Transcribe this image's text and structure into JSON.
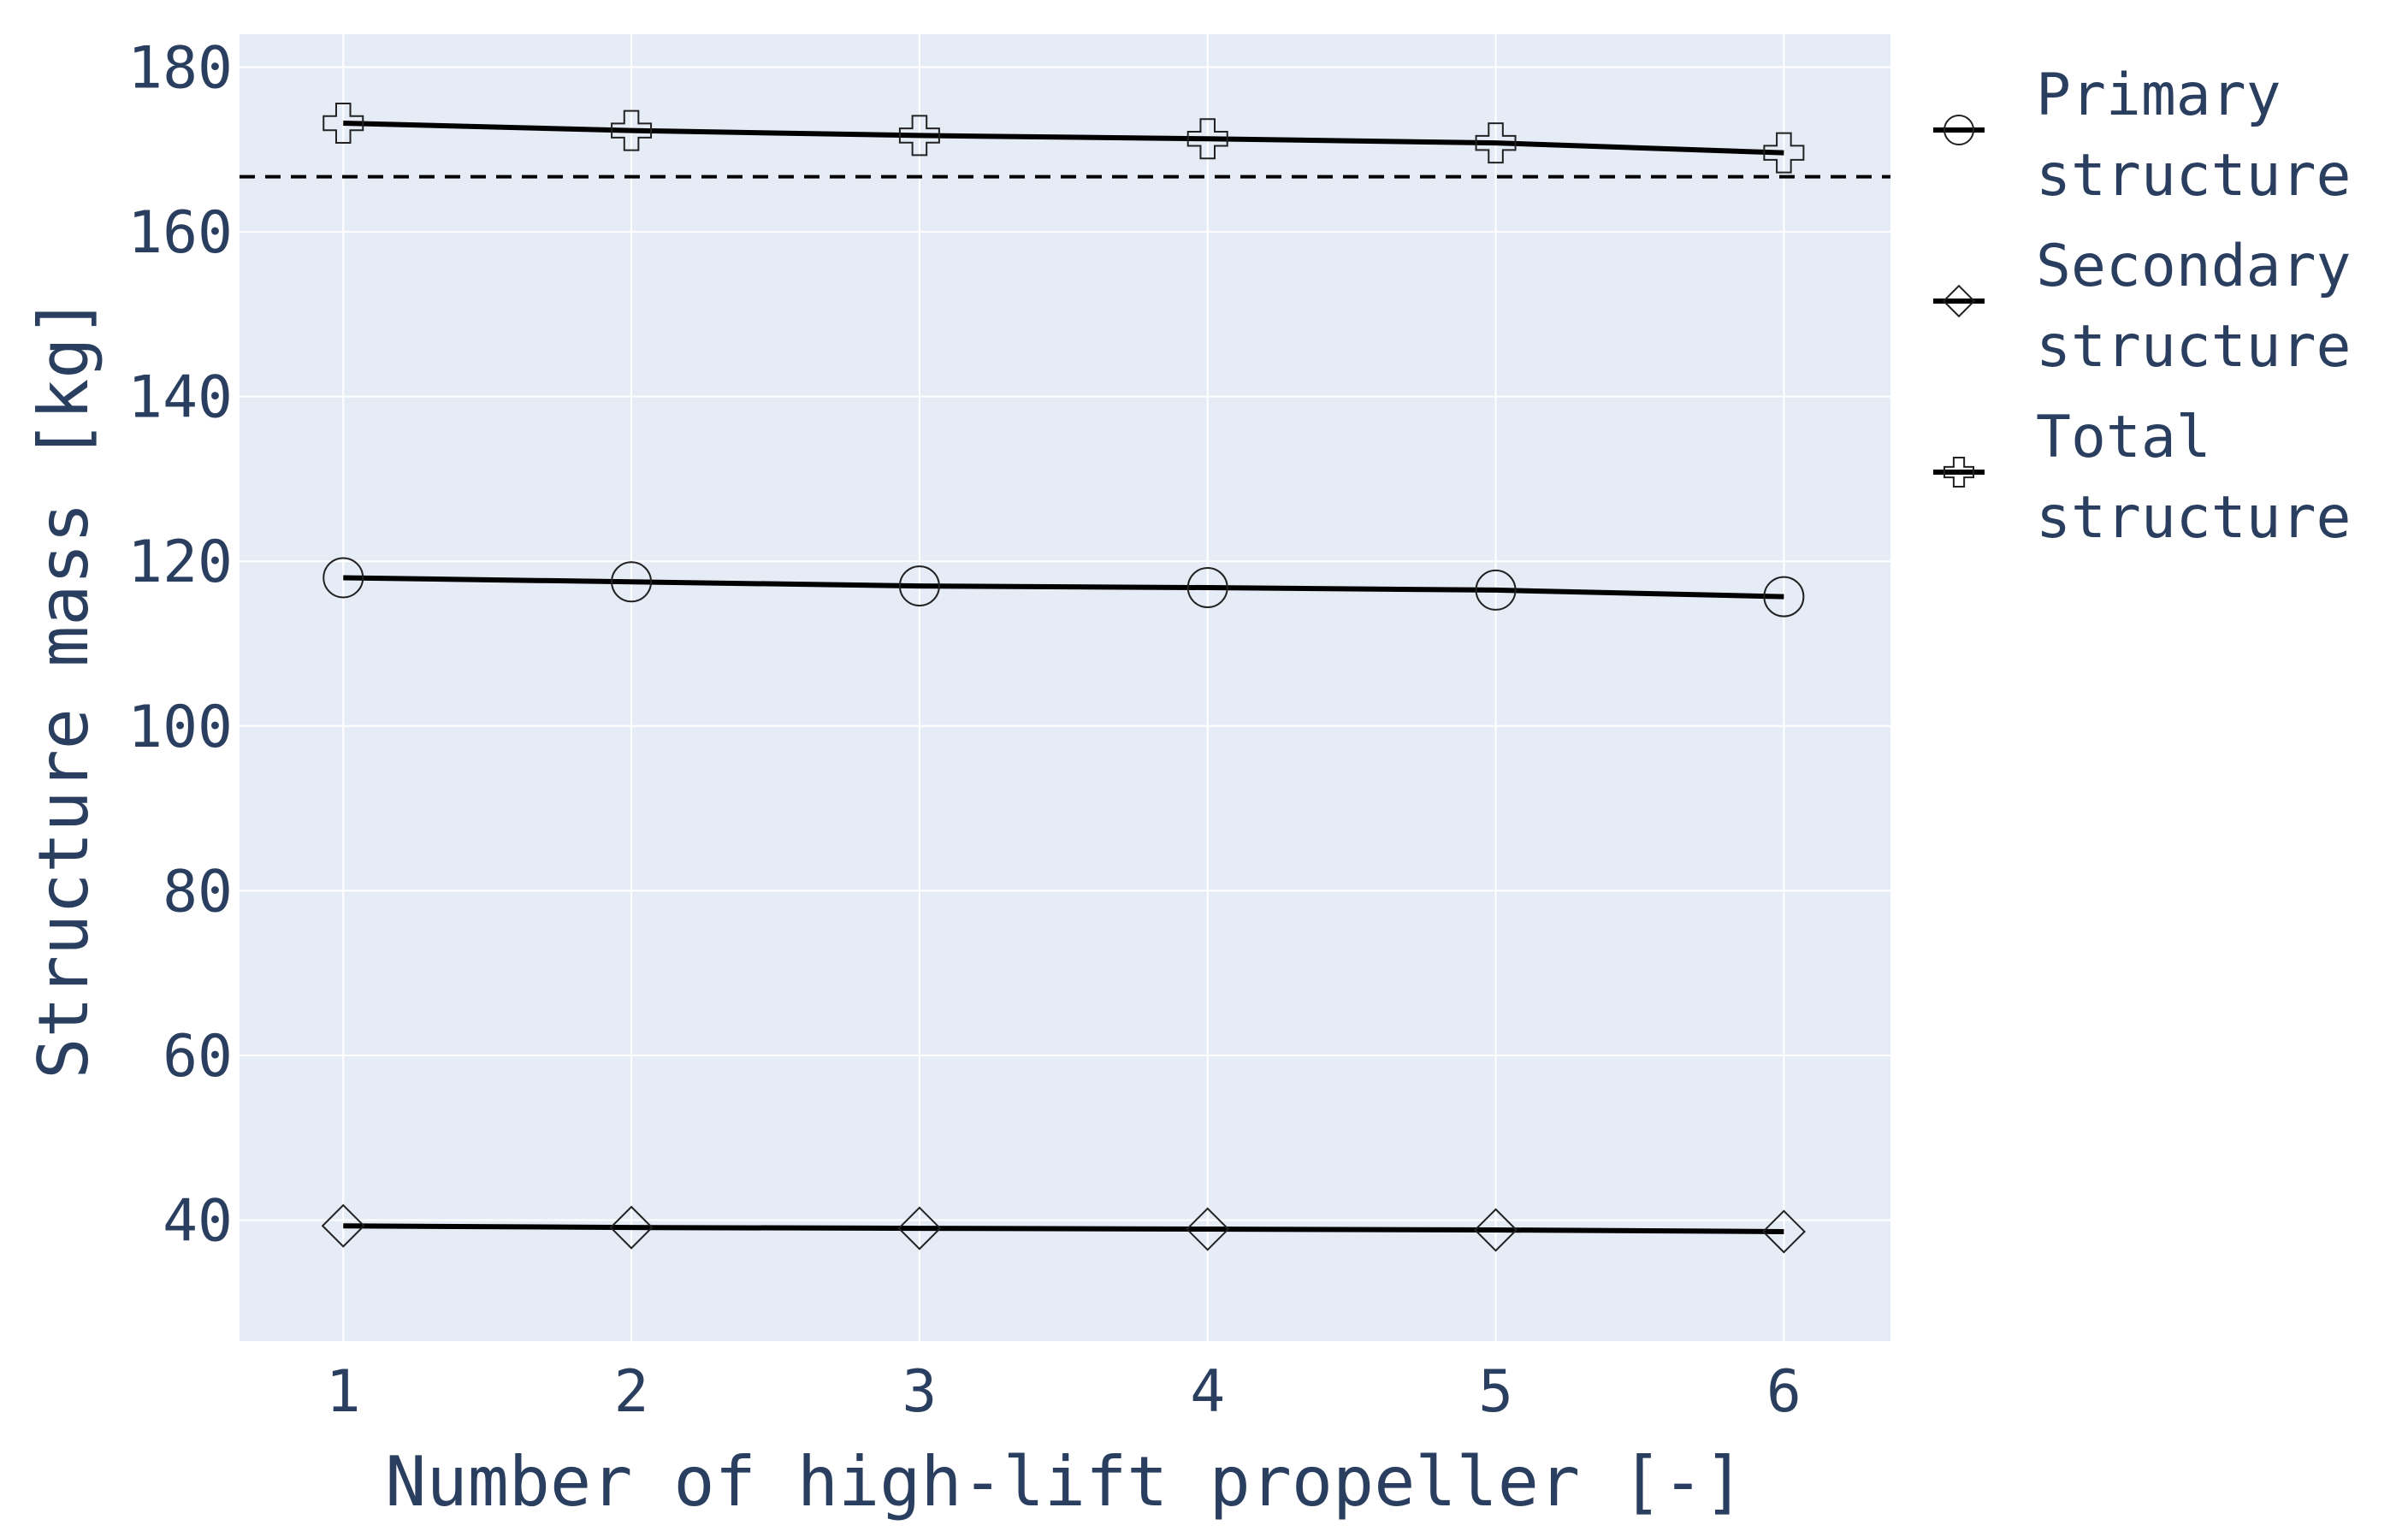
{
  "chart_data": {
    "type": "line",
    "xlabel": "Number of high-lift propeller [-]",
    "ylabel": "Structure mass [kg]",
    "x": [
      1,
      2,
      3,
      4,
      5,
      6
    ],
    "x_tick_labels": [
      "1",
      "2",
      "3",
      "4",
      "5",
      "6"
    ],
    "y_ticks": [
      40,
      60,
      80,
      100,
      120,
      140,
      160,
      180
    ],
    "y_tick_labels": [
      "40",
      "60",
      "80",
      "100",
      "120",
      "140",
      "160",
      "180"
    ],
    "xlim": [
      0.64,
      6.37
    ],
    "ylim": [
      25.3,
      184
    ],
    "grid": true,
    "background": "#e5ecf6",
    "grid_color": "#ffffff",
    "text_color": "#2a3f5f",
    "line_color": "#000000",
    "legend_position": "right",
    "series": [
      {
        "name": "Primary structure",
        "legend_lines": [
          "Primary",
          "structure"
        ],
        "marker": "circle",
        "values": [
          118,
          117.5,
          117,
          116.8,
          116.5,
          115.7
        ]
      },
      {
        "name": "Secondary structure",
        "legend_lines": [
          "Secondary",
          "structure"
        ],
        "marker": "diamond",
        "values": [
          39.3,
          39.1,
          39.0,
          38.9,
          38.8,
          38.6
        ]
      },
      {
        "name": "Total structure",
        "legend_lines": [
          "Total",
          "structure"
        ],
        "marker": "cross",
        "values": [
          173.2,
          172.3,
          171.7,
          171.3,
          170.8,
          169.6
        ]
      }
    ],
    "reference_lines": [
      {
        "style": "dashed",
        "y": 166.7
      }
    ]
  }
}
